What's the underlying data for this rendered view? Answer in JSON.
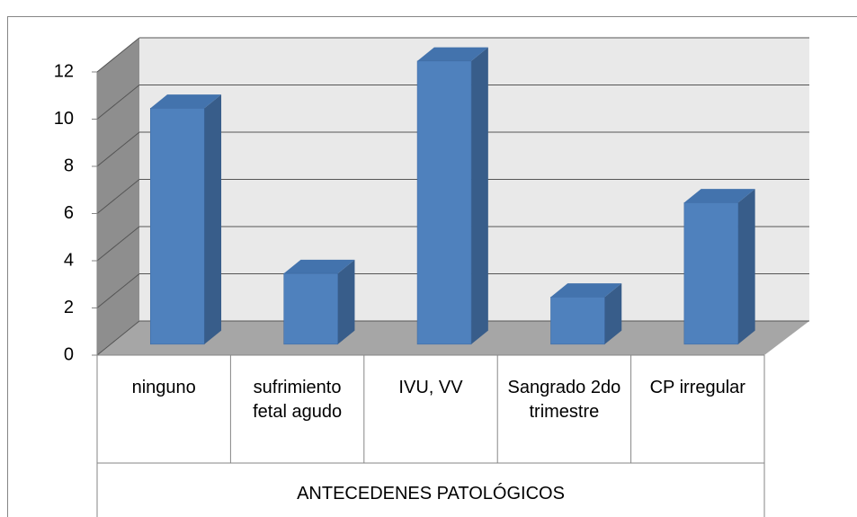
{
  "chart_data": {
    "type": "bar3d",
    "categories": [
      "ninguno",
      "sufrimiento fetal agudo",
      "IVU, VV",
      "Sangrado 2do trimestre",
      "CP irregular"
    ],
    "values": [
      10,
      3,
      12,
      2,
      6
    ],
    "color": "#4f81bd",
    "xlabel": "ANTECEDENES PATOLÓGICOS",
    "ylim": [
      0,
      12
    ],
    "yticks": [
      0,
      2,
      4,
      6,
      8,
      10,
      12
    ],
    "grid": true
  }
}
